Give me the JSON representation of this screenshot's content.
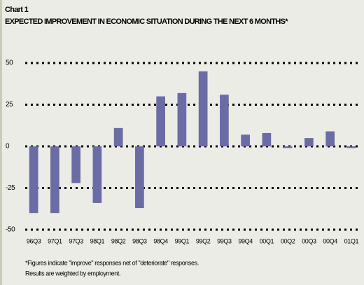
{
  "chart_data": {
    "type": "bar",
    "title": "Chart 1",
    "subtitle": "EXPECTED IMPROVEMENT IN ECONOMIC SITUATION DURING THE NEXT 6 MONTHS*",
    "categories": [
      "96Q3",
      "97Q1",
      "97Q3",
      "98Q1",
      "98Q2",
      "98Q3",
      "98Q4",
      "99Q1",
      "99Q2",
      "99Q3",
      "99Q4",
      "00Q1",
      "00Q2",
      "00Q3",
      "00Q4",
      "01Q1"
    ],
    "values": [
      -40,
      -40,
      -22,
      -34,
      11,
      -37,
      30,
      32,
      45,
      31,
      7,
      8,
      -1,
      5,
      9,
      -1
    ],
    "color": "#6b6ba6",
    "ylim": [
      -50,
      50
    ],
    "yticks": [
      50,
      25,
      0,
      -25,
      -50
    ],
    "grid": true,
    "notes": [
      "*Figures indicate \"improve\" responses net of \"deteriorate\" responses.",
      "Results are weighted by employment."
    ]
  }
}
